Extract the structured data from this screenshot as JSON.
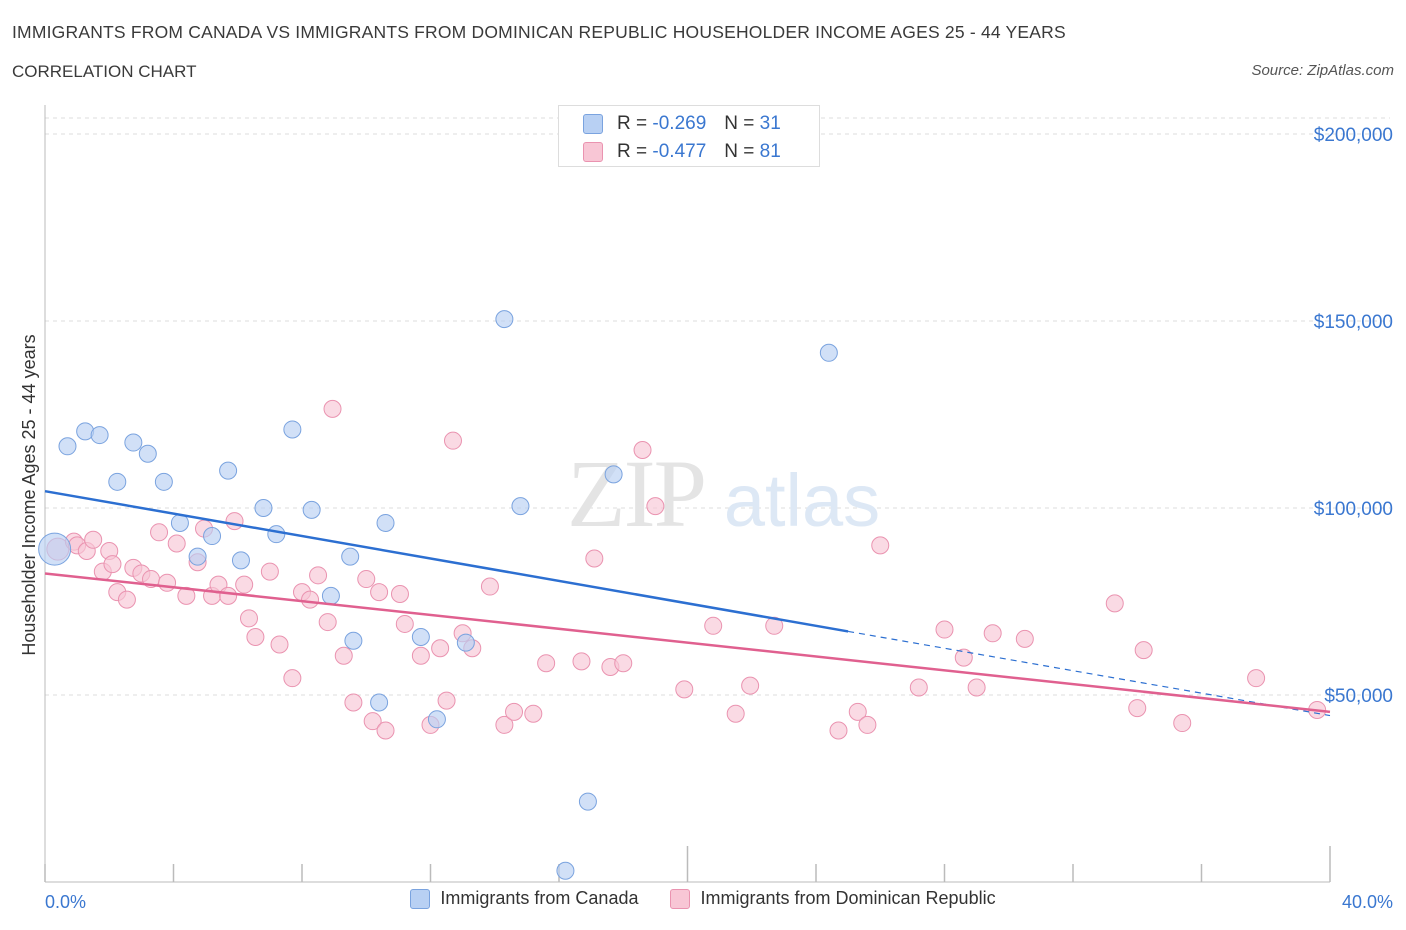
{
  "header": {
    "title": "IMMIGRANTS FROM CANADA VS IMMIGRANTS FROM DOMINICAN REPUBLIC HOUSEHOLDER INCOME AGES 25 - 44 YEARS",
    "subtitle": "CORRELATION CHART",
    "source": "Source: ZipAtlas.com"
  },
  "watermark": {
    "zip": "ZIP",
    "atlas": "atlas"
  },
  "legend": {
    "rows": [
      {
        "r_label": "R =",
        "r_value": "-0.269",
        "n_label": "N =",
        "n_value": "31"
      },
      {
        "r_label": "R =",
        "r_value": "-0.477",
        "n_label": "N =",
        "n_value": "81"
      }
    ]
  },
  "colors": {
    "canada_fill": "#b8d0f3",
    "canada_stroke": "#7aa3df",
    "canada_line": "#2c6fd1",
    "dr_fill": "#f8c6d5",
    "dr_stroke": "#ea93b0",
    "dr_line": "#e0608f",
    "axis_text": "#3a77d0",
    "grid": "#dddddd"
  },
  "chart_data": {
    "type": "scatter",
    "title": "IMMIGRANTS FROM CANADA VS IMMIGRANTS FROM DOMINICAN REPUBLIC HOUSEHOLDER INCOME AGES 25 - 44 YEARS",
    "subtitle": "CORRELATION CHART",
    "xlabel": "",
    "ylabel": "Householder Income Ages 25 - 44 years",
    "xlim": [
      0,
      40
    ],
    "ylim": [
      0,
      200000
    ],
    "x_tick_labels": [
      "0.0%",
      "40.0%"
    ],
    "y_ticks": [
      50000,
      100000,
      150000,
      200000
    ],
    "y_tick_labels": [
      "$50,000",
      "$100,000",
      "$150,000",
      "$200,000"
    ],
    "grid": "horizontal dashed",
    "legend_position": "top-center",
    "series": [
      {
        "name": "Immigrants from Canada",
        "r": -0.269,
        "n": 31,
        "trend": {
          "x_start": 0,
          "y_start": 104500,
          "x_end": 25,
          "y_end": 67000,
          "dashed_to_x": 40,
          "dashed_to_y": 44500
        },
        "points": [
          [
            0.3,
            89000
          ],
          [
            0.7,
            116500
          ],
          [
            1.25,
            120500
          ],
          [
            1.7,
            119500
          ],
          [
            2.25,
            107000
          ],
          [
            2.75,
            117500
          ],
          [
            3.2,
            114500
          ],
          [
            3.7,
            107000
          ],
          [
            4.2,
            96000
          ],
          [
            4.75,
            87000
          ],
          [
            5.2,
            92500
          ],
          [
            5.7,
            110000
          ],
          [
            6.1,
            86000
          ],
          [
            6.8,
            100000
          ],
          [
            7.2,
            93000
          ],
          [
            7.7,
            121000
          ],
          [
            8.3,
            99500
          ],
          [
            8.9,
            76500
          ],
          [
            9.5,
            87000
          ],
          [
            9.6,
            64500
          ],
          [
            10.4,
            48000
          ],
          [
            10.6,
            96000
          ],
          [
            11.7,
            65500
          ],
          [
            12.2,
            43500
          ],
          [
            13.1,
            64000
          ],
          [
            14.3,
            150500
          ],
          [
            14.8,
            100500
          ],
          [
            16.2,
            3000
          ],
          [
            16.9,
            21500
          ],
          [
            17.7,
            109000
          ],
          [
            24.4,
            141500
          ]
        ]
      },
      {
        "name": "Immigrants from Dominican Republic",
        "r": -0.477,
        "n": 81,
        "trend": {
          "x_start": 0,
          "y_start": 82500,
          "x_end": 40,
          "y_end": 45500
        },
        "points": [
          [
            0.4,
            89000
          ],
          [
            0.9,
            91000
          ],
          [
            1.0,
            90000
          ],
          [
            1.3,
            88500
          ],
          [
            1.5,
            91500
          ],
          [
            1.8,
            83000
          ],
          [
            2.0,
            88500
          ],
          [
            2.1,
            85000
          ],
          [
            2.25,
            77500
          ],
          [
            2.55,
            75500
          ],
          [
            2.75,
            84000
          ],
          [
            3.0,
            82500
          ],
          [
            3.3,
            81000
          ],
          [
            3.55,
            93500
          ],
          [
            3.8,
            80000
          ],
          [
            4.1,
            90500
          ],
          [
            4.4,
            76500
          ],
          [
            4.75,
            85500
          ],
          [
            4.95,
            94500
          ],
          [
            5.2,
            76500
          ],
          [
            5.4,
            79500
          ],
          [
            5.7,
            76500
          ],
          [
            5.9,
            96500
          ],
          [
            6.2,
            79500
          ],
          [
            6.35,
            70500
          ],
          [
            6.55,
            65500
          ],
          [
            7.0,
            83000
          ],
          [
            7.3,
            63500
          ],
          [
            7.7,
            54500
          ],
          [
            8.0,
            77500
          ],
          [
            8.25,
            75500
          ],
          [
            8.5,
            82000
          ],
          [
            8.8,
            69500
          ],
          [
            8.95,
            126500
          ],
          [
            9.3,
            60500
          ],
          [
            9.6,
            48000
          ],
          [
            10.0,
            81000
          ],
          [
            10.2,
            43000
          ],
          [
            10.4,
            77500
          ],
          [
            10.6,
            40500
          ],
          [
            11.05,
            77000
          ],
          [
            11.2,
            69000
          ],
          [
            11.7,
            60500
          ],
          [
            12.0,
            42000
          ],
          [
            12.3,
            62500
          ],
          [
            12.5,
            48500
          ],
          [
            12.7,
            118000
          ],
          [
            13.0,
            66500
          ],
          [
            13.3,
            62500
          ],
          [
            13.85,
            79000
          ],
          [
            14.3,
            42000
          ],
          [
            14.6,
            45500
          ],
          [
            15.2,
            45000
          ],
          [
            15.6,
            58500
          ],
          [
            16.7,
            59000
          ],
          [
            17.1,
            86500
          ],
          [
            17.6,
            57500
          ],
          [
            18.0,
            58500
          ],
          [
            18.6,
            115500
          ],
          [
            19.0,
            100500
          ],
          [
            19.9,
            51500
          ],
          [
            20.8,
            68500
          ],
          [
            21.5,
            45000
          ],
          [
            21.95,
            52500
          ],
          [
            22.7,
            68500
          ],
          [
            24.7,
            40500
          ],
          [
            25.3,
            45500
          ],
          [
            25.6,
            42000
          ],
          [
            26.0,
            90000
          ],
          [
            27.2,
            52000
          ],
          [
            28.0,
            67500
          ],
          [
            28.6,
            60000
          ],
          [
            29.0,
            52000
          ],
          [
            29.5,
            66500
          ],
          [
            30.5,
            65000
          ],
          [
            33.3,
            74500
          ],
          [
            34.0,
            46500
          ],
          [
            34.2,
            62000
          ],
          [
            35.4,
            42500
          ],
          [
            37.7,
            54500
          ],
          [
            39.6,
            46000
          ]
        ]
      }
    ]
  }
}
